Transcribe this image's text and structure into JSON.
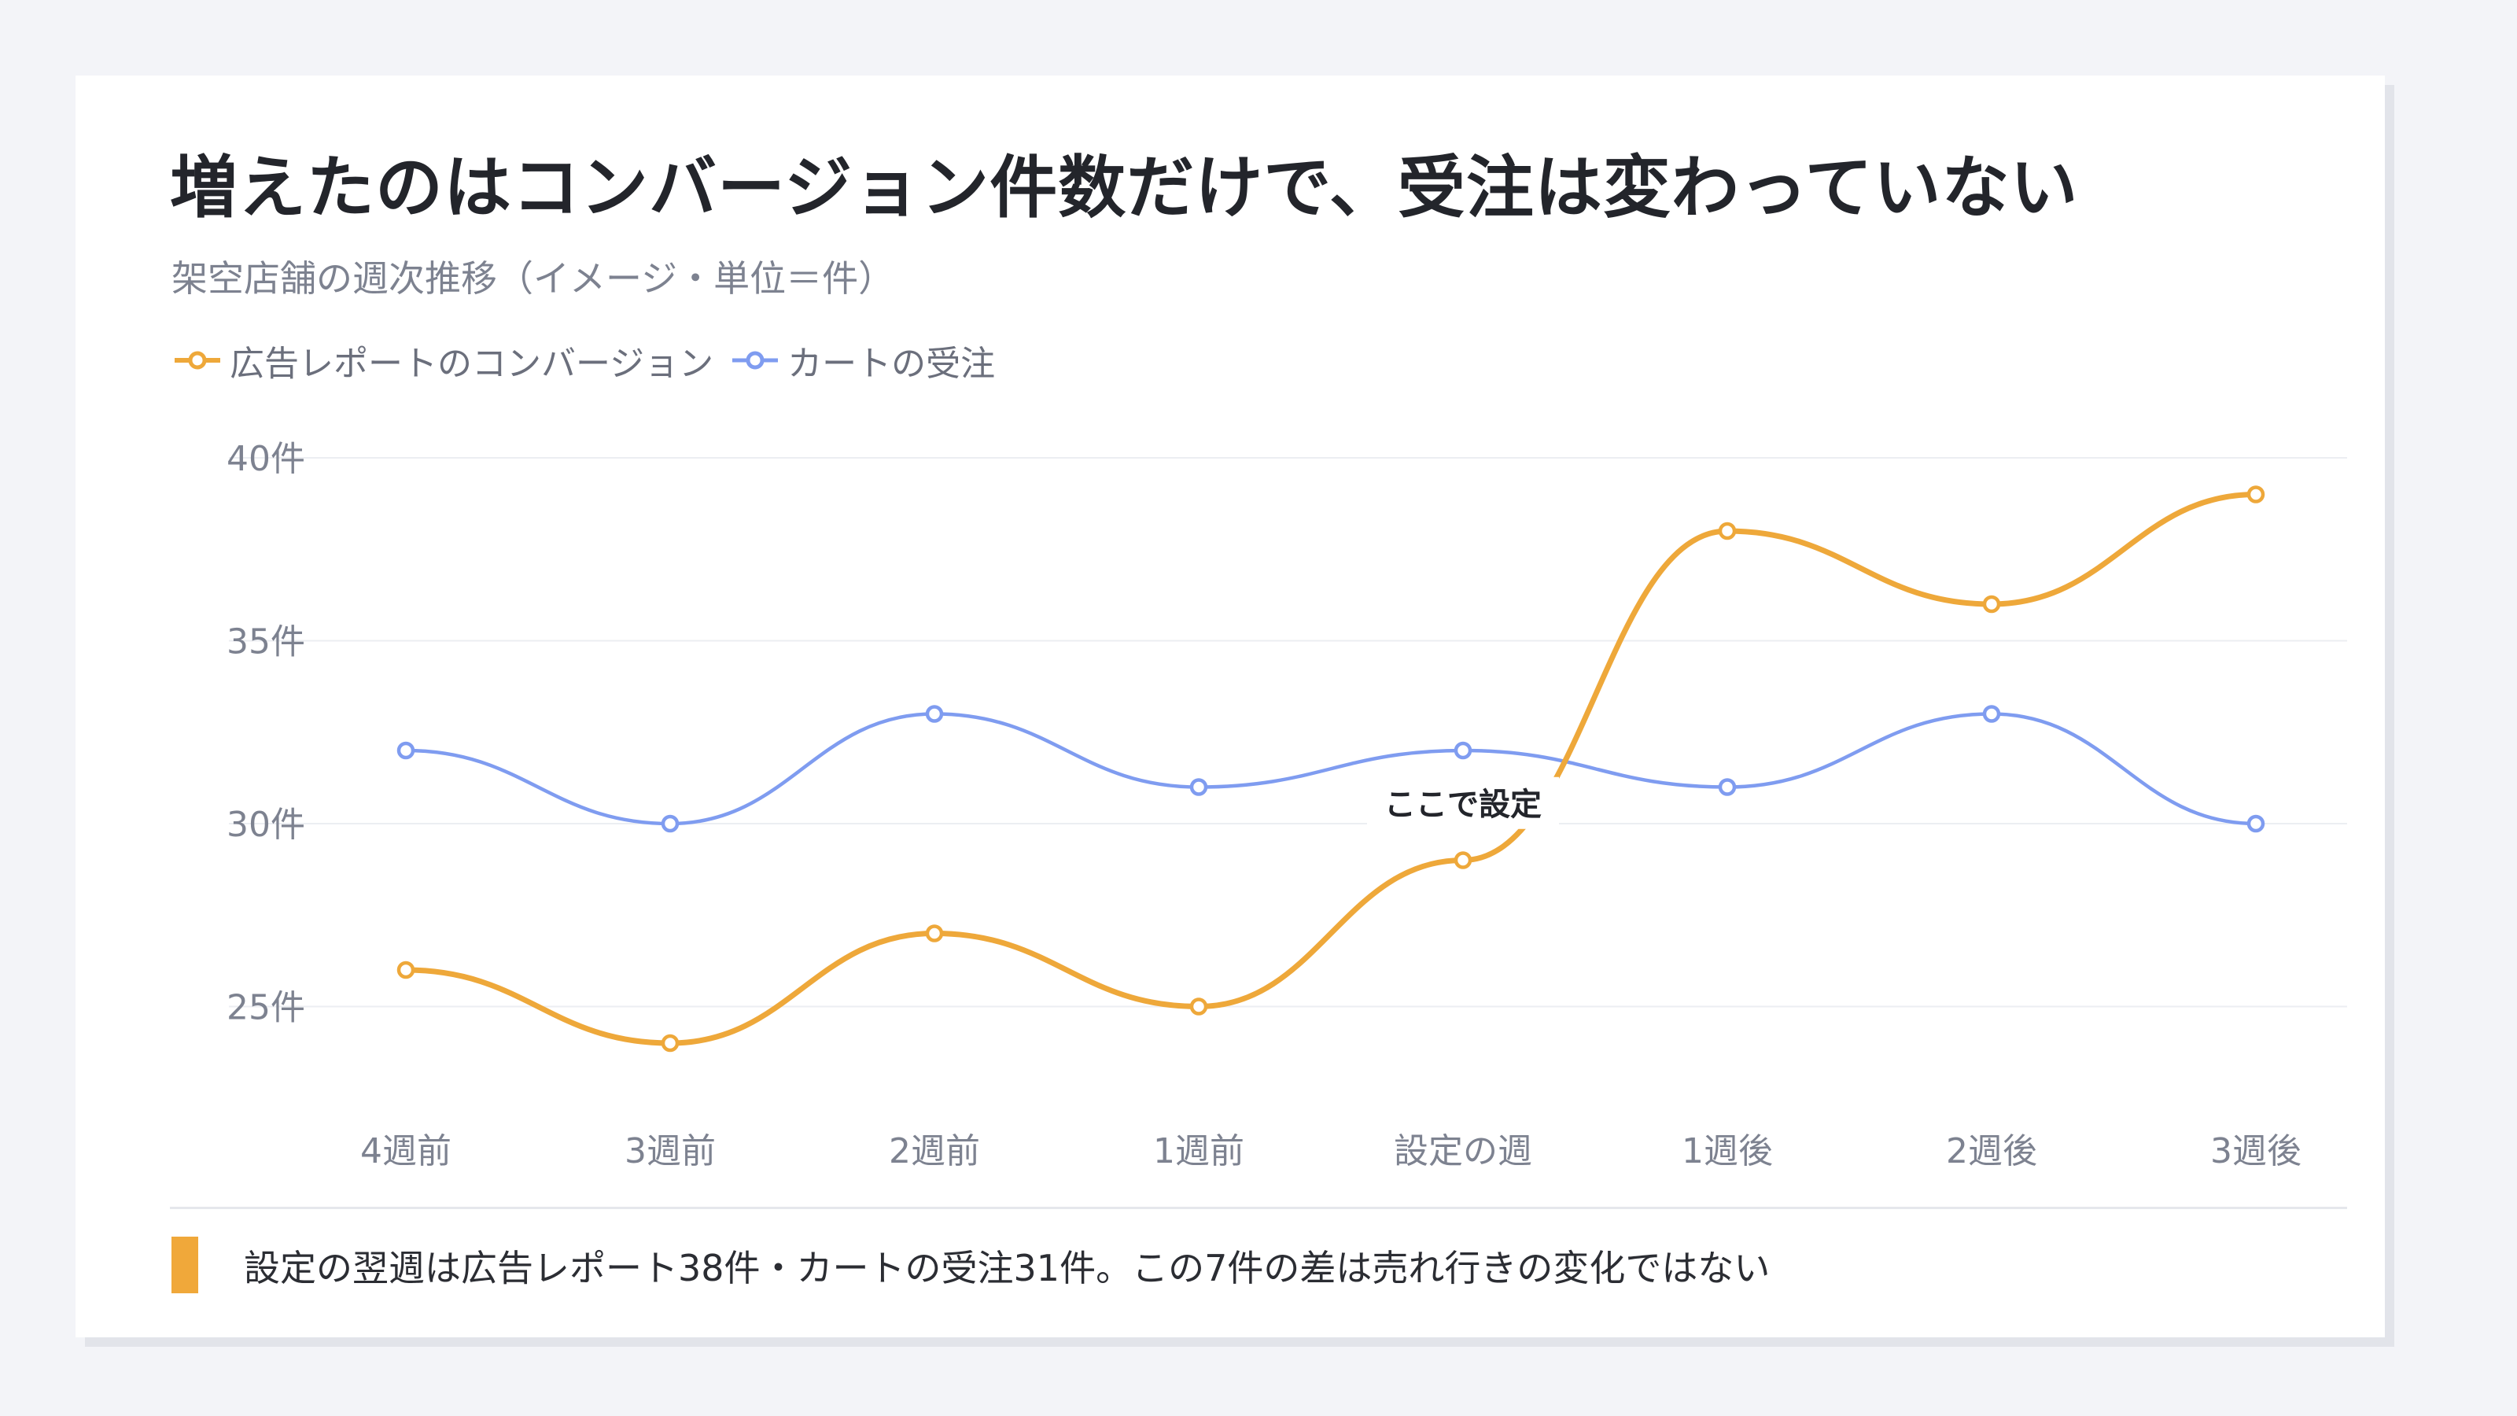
{
  "header": {
    "title": "増えたのはコンバージョン件数だけで、受注は変わっていない",
    "subtitle": "架空店舗の週次推移（イメージ・単位＝件）"
  },
  "footer": {
    "note": "設定の翌週は広告レポート38件・カートの受注31件。この7件の差は売れ行きの変化ではない",
    "accent_color": "#f0a83a"
  },
  "chart_data": {
    "type": "line",
    "categories": [
      "4週前",
      "3週前",
      "2週前",
      "1週前",
      "設定の週",
      "1週後",
      "2週後",
      "3週後"
    ],
    "series": [
      {
        "name": "広告レポートのコンバージョン",
        "color": "#eea83a",
        "values": [
          26,
          24,
          27,
          25,
          29,
          38,
          36,
          39
        ]
      },
      {
        "name": "カートの受注",
        "color": "#7f9cf0",
        "values": [
          32,
          30,
          33,
          31,
          32,
          31,
          33,
          30
        ]
      }
    ],
    "y_ticks": [
      25,
      30,
      35,
      40
    ],
    "y_tick_labels": [
      "25件",
      "30件",
      "35件",
      "40件"
    ],
    "ylim": [
      23,
      40
    ],
    "grid": true,
    "legend_position": "top-left",
    "annotation": {
      "text": "ここで設定",
      "category": "設定の週",
      "y": 30.5
    }
  }
}
